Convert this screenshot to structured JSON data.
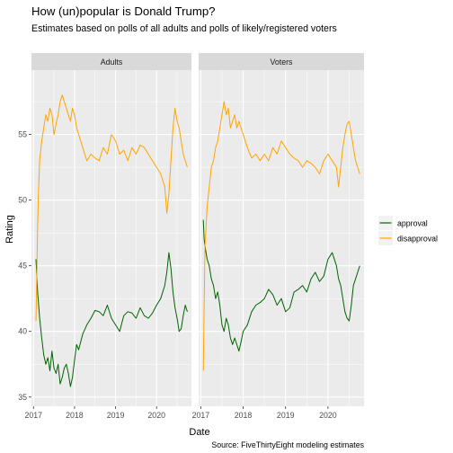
{
  "chart_data": {
    "type": "line",
    "title": "How (un)popular is Donald Trump?",
    "subtitle": "Estimates based on polls of all adults and polls of likely/registered voters",
    "xlabel": "Date",
    "ylabel": "Rating",
    "caption": "Source: FiveThirtyEight modeling estimates",
    "xlim": [
      2016.95,
      2020.85
    ],
    "ylim": [
      34.3,
      59.9
    ],
    "x_ticks": [
      2017,
      2018,
      2019,
      2020
    ],
    "x_tick_labels": [
      "2017",
      "2018",
      "2019",
      "2020"
    ],
    "y_ticks": [
      35,
      40,
      45,
      50,
      55
    ],
    "y_tick_labels": [
      "35",
      "40",
      "45",
      "50",
      "55"
    ],
    "legend": {
      "position": "right",
      "entries": [
        {
          "name": "approval",
          "color": "#006400"
        },
        {
          "name": "disapproval",
          "color": "#FFA500"
        }
      ]
    },
    "panels": [
      {
        "label": "Adults",
        "series": [
          {
            "name": "approval",
            "color": "#006400",
            "x": [
              2017.06,
              2017.1,
              2017.15,
              2017.2,
              2017.25,
              2017.3,
              2017.35,
              2017.4,
              2017.45,
              2017.5,
              2017.55,
              2017.6,
              2017.65,
              2017.7,
              2017.75,
              2017.8,
              2017.85,
              2017.9,
              2017.95,
              2018.0,
              2018.05,
              2018.1,
              2018.15,
              2018.2,
              2018.3,
              2018.4,
              2018.5,
              2018.6,
              2018.7,
              2018.8,
              2018.9,
              2019.0,
              2019.1,
              2019.2,
              2019.3,
              2019.4,
              2019.5,
              2019.6,
              2019.7,
              2019.8,
              2019.9,
              2020.0,
              2020.1,
              2020.2,
              2020.25,
              2020.3,
              2020.35,
              2020.4,
              2020.45,
              2020.5,
              2020.55,
              2020.6,
              2020.65,
              2020.7,
              2020.75
            ],
            "y": [
              45.5,
              43.0,
              41.0,
              39.5,
              38.2,
              37.5,
              38.0,
              37.0,
              38.5,
              37.2,
              36.8,
              37.5,
              36.0,
              36.5,
              37.2,
              37.5,
              36.8,
              35.8,
              36.5,
              37.8,
              39.0,
              38.6,
              39.2,
              39.8,
              40.5,
              41.0,
              41.6,
              41.5,
              41.2,
              42.0,
              41.0,
              40.5,
              40.0,
              41.2,
              41.5,
              41.4,
              41.0,
              41.8,
              41.2,
              41.0,
              41.4,
              42.0,
              42.5,
              43.5,
              44.5,
              46.0,
              44.8,
              43.0,
              41.8,
              41.0,
              40.0,
              40.2,
              41.2,
              42.0,
              41.5
            ]
          },
          {
            "name": "disapproval",
            "color": "#FFA500",
            "x": [
              2017.06,
              2017.08,
              2017.1,
              2017.12,
              2017.15,
              2017.2,
              2017.25,
              2017.3,
              2017.35,
              2017.4,
              2017.45,
              2017.5,
              2017.55,
              2017.6,
              2017.65,
              2017.7,
              2017.75,
              2017.8,
              2017.85,
              2017.9,
              2017.95,
              2018.0,
              2018.05,
              2018.1,
              2018.2,
              2018.3,
              2018.4,
              2018.5,
              2018.6,
              2018.7,
              2018.8,
              2018.9,
              2019.0,
              2019.1,
              2019.2,
              2019.3,
              2019.4,
              2019.5,
              2019.6,
              2019.7,
              2019.8,
              2019.9,
              2020.0,
              2020.1,
              2020.2,
              2020.25,
              2020.3,
              2020.35,
              2020.4,
              2020.45,
              2020.5,
              2020.55,
              2020.6,
              2020.65,
              2020.7,
              2020.75
            ],
            "y": [
              40.8,
              44.0,
              48.0,
              50.5,
              53.0,
              54.5,
              55.5,
              56.5,
              56.0,
              57.0,
              56.5,
              55.0,
              55.8,
              56.5,
              57.5,
              58.0,
              57.5,
              57.0,
              56.5,
              56.0,
              57.0,
              56.5,
              55.5,
              55.0,
              54.0,
              53.0,
              53.5,
              53.2,
              53.0,
              54.0,
              53.5,
              55.0,
              54.5,
              53.5,
              53.8,
              53.0,
              54.0,
              53.5,
              54.2,
              54.0,
              53.5,
              53.0,
              52.5,
              52.0,
              51.0,
              49.0,
              50.5,
              53.0,
              55.5,
              57.0,
              56.0,
              55.5,
              54.5,
              53.5,
              53.0,
              52.5
            ]
          }
        ]
      },
      {
        "label": "Voters",
        "series": [
          {
            "name": "approval",
            "color": "#006400",
            "x": [
              2017.06,
              2017.08,
              2017.1,
              2017.15,
              2017.2,
              2017.25,
              2017.3,
              2017.35,
              2017.4,
              2017.45,
              2017.5,
              2017.55,
              2017.6,
              2017.65,
              2017.7,
              2017.75,
              2017.8,
              2017.85,
              2017.9,
              2017.95,
              2018.0,
              2018.1,
              2018.2,
              2018.3,
              2018.4,
              2018.5,
              2018.6,
              2018.7,
              2018.8,
              2018.9,
              2019.0,
              2019.1,
              2019.2,
              2019.3,
              2019.4,
              2019.5,
              2019.6,
              2019.7,
              2019.8,
              2019.9,
              2020.0,
              2020.1,
              2020.2,
              2020.25,
              2020.3,
              2020.35,
              2020.4,
              2020.45,
              2020.5,
              2020.55,
              2020.6,
              2020.65,
              2020.7,
              2020.75
            ],
            "y": [
              48.5,
              47.0,
              46.5,
              45.5,
              45.0,
              44.0,
              43.5,
              42.5,
              43.0,
              42.0,
              40.5,
              40.0,
              41.0,
              40.5,
              39.5,
              39.0,
              39.5,
              39.0,
              38.5,
              39.2,
              40.0,
              40.5,
              41.5,
              42.0,
              42.2,
              42.5,
              43.2,
              42.8,
              42.0,
              42.5,
              41.5,
              41.8,
              43.0,
              43.2,
              43.5,
              43.0,
              44.0,
              44.5,
              43.8,
              44.2,
              45.5,
              46.0,
              45.0,
              44.0,
              43.5,
              42.5,
              41.5,
              41.0,
              40.8,
              42.0,
              43.5,
              44.0,
              44.5,
              45.0
            ]
          },
          {
            "name": "disapproval",
            "color": "#FFA500",
            "x": [
              2017.06,
              2017.08,
              2017.1,
              2017.15,
              2017.2,
              2017.25,
              2017.3,
              2017.35,
              2017.4,
              2017.45,
              2017.5,
              2017.55,
              2017.6,
              2017.65,
              2017.7,
              2017.75,
              2017.8,
              2017.85,
              2017.9,
              2017.95,
              2018.0,
              2018.1,
              2018.2,
              2018.3,
              2018.4,
              2018.5,
              2018.6,
              2018.7,
              2018.8,
              2018.9,
              2019.0,
              2019.1,
              2019.2,
              2019.3,
              2019.4,
              2019.5,
              2019.6,
              2019.7,
              2019.8,
              2019.9,
              2020.0,
              2020.1,
              2020.2,
              2020.25,
              2020.3,
              2020.35,
              2020.4,
              2020.45,
              2020.5,
              2020.55,
              2020.6,
              2020.65,
              2020.7,
              2020.75
            ],
            "y": [
              37.0,
              42.0,
              46.5,
              49.5,
              51.0,
              52.5,
              53.0,
              54.0,
              54.5,
              55.5,
              56.5,
              57.5,
              56.5,
              57.0,
              55.5,
              56.0,
              56.5,
              55.5,
              56.0,
              55.5,
              55.0,
              54.0,
              53.2,
              53.5,
              53.0,
              53.5,
              53.0,
              54.0,
              53.5,
              54.5,
              54.0,
              53.5,
              53.2,
              53.0,
              52.5,
              53.0,
              52.8,
              52.5,
              52.0,
              53.0,
              53.5,
              53.0,
              52.5,
              51.0,
              52.5,
              54.0,
              55.0,
              55.8,
              56.0,
              55.0,
              54.0,
              53.0,
              52.5,
              52.0
            ]
          }
        ]
      }
    ]
  }
}
